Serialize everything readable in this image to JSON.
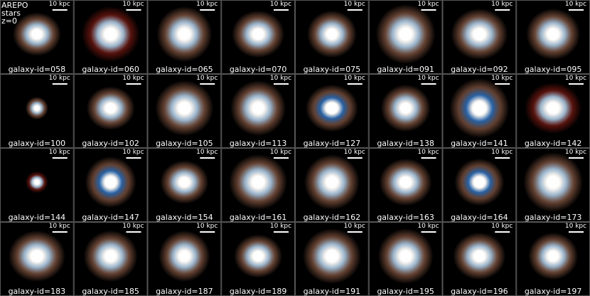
{
  "annotation": {
    "lines": [
      "AREPO",
      "stars",
      "z=0"
    ]
  },
  "panels": [
    {
      "label": "galaxy-id=058",
      "scale_bar": "10 kpc"
    },
    {
      "label": "galaxy-id=060",
      "scale_bar": "10 kpc"
    },
    {
      "label": "galaxy-id=065",
      "scale_bar": "10 kpc"
    },
    {
      "label": "galaxy-id=070",
      "scale_bar": "10 kpc"
    },
    {
      "label": "galaxy-id=075",
      "scale_bar": "10 kpc"
    },
    {
      "label": "galaxy-id=091",
      "scale_bar": "10 kpc"
    },
    {
      "label": "galaxy-id=092",
      "scale_bar": "10 kpc"
    },
    {
      "label": "galaxy-id=095",
      "scale_bar": "10 kpc"
    },
    {
      "label": "galaxy-id=100",
      "scale_bar": "10 kpc"
    },
    {
      "label": "galaxy-id=102",
      "scale_bar": "10 kpc"
    },
    {
      "label": "galaxy-id=105",
      "scale_bar": "10 kpc"
    },
    {
      "label": "galaxy-id=113",
      "scale_bar": "10 kpc"
    },
    {
      "label": "galaxy-id=127",
      "scale_bar": "10 kpc"
    },
    {
      "label": "galaxy-id=138",
      "scale_bar": "10 kpc"
    },
    {
      "label": "galaxy-id=141",
      "scale_bar": "10 kpc"
    },
    {
      "label": "galaxy-id=142",
      "scale_bar": "10 kpc"
    },
    {
      "label": "galaxy-id=144",
      "scale_bar": "10 kpc"
    },
    {
      "label": "galaxy-id=147",
      "scale_bar": "10 kpc"
    },
    {
      "label": "galaxy-id=154",
      "scale_bar": "10 kpc"
    },
    {
      "label": "galaxy-id=161",
      "scale_bar": "10 kpc"
    },
    {
      "label": "galaxy-id=162",
      "scale_bar": "10 kpc"
    },
    {
      "label": "galaxy-id=163",
      "scale_bar": "10 kpc"
    },
    {
      "label": "galaxy-id=164",
      "scale_bar": "10 kpc"
    },
    {
      "label": "galaxy-id=173",
      "scale_bar": "10 kpc"
    },
    {
      "label": "galaxy-id=183",
      "scale_bar": "10 kpc"
    },
    {
      "label": "galaxy-id=185",
      "scale_bar": "10 kpc"
    },
    {
      "label": "galaxy-id=187",
      "scale_bar": "10 kpc"
    },
    {
      "label": "galaxy-id=189",
      "scale_bar": "10 kpc"
    },
    {
      "label": "galaxy-id=191",
      "scale_bar": "10 kpc"
    },
    {
      "label": "galaxy-id=195",
      "scale_bar": "10 kpc"
    },
    {
      "label": "galaxy-id=196",
      "scale_bar": "10 kpc"
    },
    {
      "label": "galaxy-id=197",
      "scale_bar": "10 kpc"
    }
  ]
}
